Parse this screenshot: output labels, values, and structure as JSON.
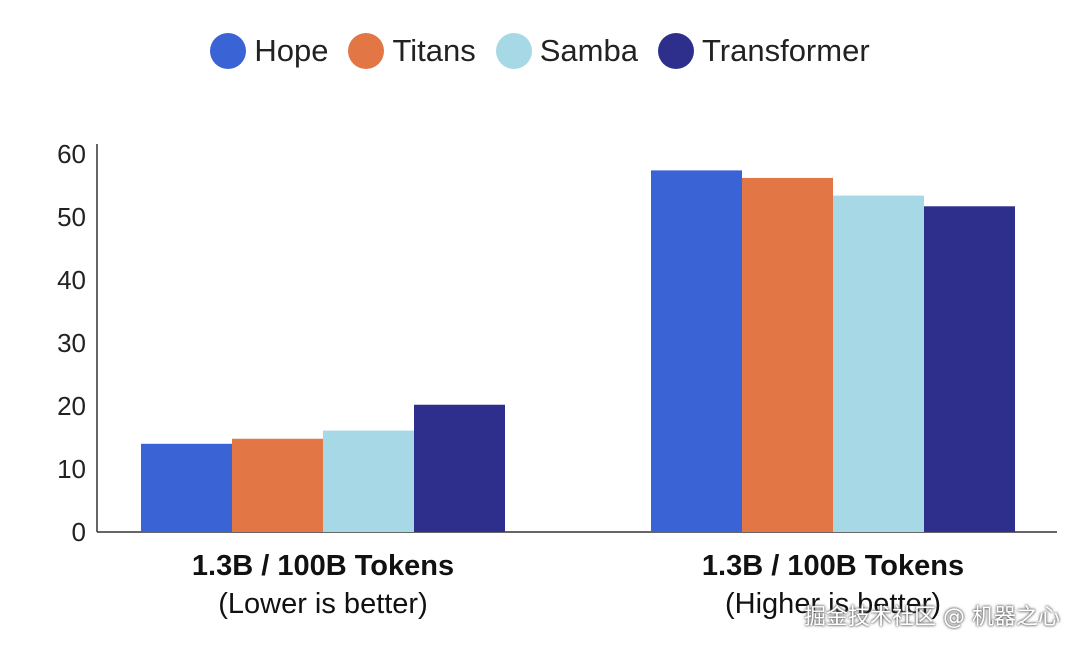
{
  "chart_data": {
    "type": "bar",
    "title": "",
    "xlabel": "",
    "ylabel": "",
    "ylim": [
      0,
      60
    ],
    "yticks": [
      0,
      10,
      20,
      30,
      40,
      50,
      60
    ],
    "legend_position": "top-center",
    "categories": [
      {
        "label": "1.3B / 100B Tokens",
        "sublabel": "(Lower is better)"
      },
      {
        "label": "1.3B / 100B Tokens",
        "sublabel": "(Higher is better)"
      }
    ],
    "series": [
      {
        "name": "Hope",
        "color": "#3a63d6",
        "values": [
          14.0,
          57.4
        ]
      },
      {
        "name": "Titans",
        "color": "#e37645",
        "values": [
          14.8,
          56.2
        ]
      },
      {
        "name": "Samba",
        "color": "#a6d8e6",
        "values": [
          16.1,
          53.4
        ]
      },
      {
        "name": "Transformer",
        "color": "#2e2f8c",
        "values": [
          20.2,
          51.7
        ]
      }
    ]
  },
  "watermark": "掘金技术社区 @ 机器之心"
}
